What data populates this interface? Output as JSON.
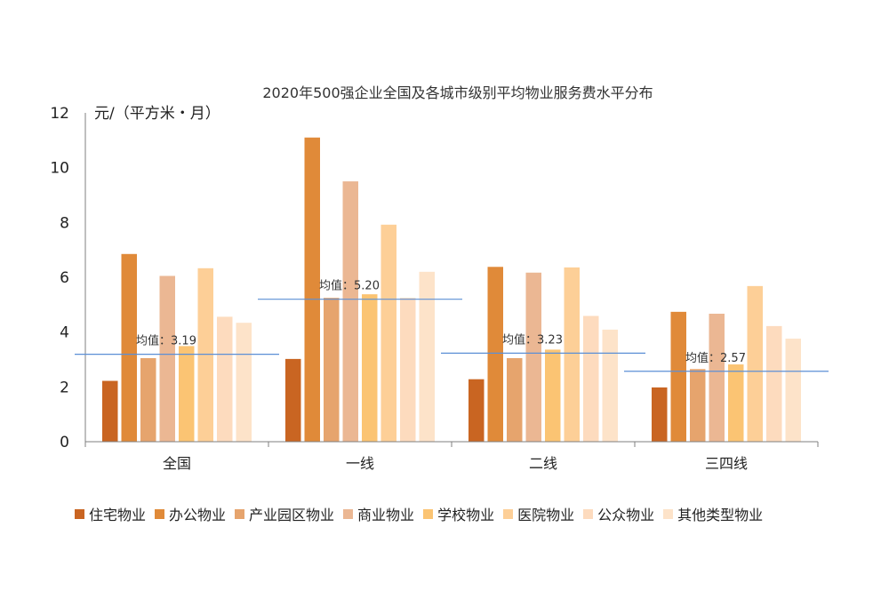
{
  "chart_data": {
    "type": "bar",
    "title": "2020年500强企业全国及各城市级别平均物业服务费水平分布",
    "ylabel": "元/（平方米・月）",
    "xlabel": "",
    "ylim": [
      0,
      12
    ],
    "yticks": [
      0,
      2,
      4,
      6,
      8,
      10,
      12
    ],
    "grid": false,
    "legend_position": "bottom",
    "categories": [
      "全国",
      "一线",
      "二线",
      "三四线"
    ],
    "series": [
      {
        "name": "住宅物业",
        "color": "#C96522",
        "values": [
          2.22,
          3.02,
          2.28,
          1.98
        ]
      },
      {
        "name": "办公物业",
        "color": "#E08A39",
        "values": [
          6.85,
          11.1,
          6.38,
          4.74
        ]
      },
      {
        "name": "产业园区物业",
        "color": "#E6A46D",
        "values": [
          3.05,
          5.25,
          3.05,
          2.65
        ]
      },
      {
        "name": "商业物业",
        "color": "#EBB793",
        "values": [
          6.05,
          9.5,
          6.17,
          4.67
        ]
      },
      {
        "name": "学校物业",
        "color": "#FBC473",
        "values": [
          3.49,
          5.38,
          3.36,
          2.82
        ]
      },
      {
        "name": "医院物业",
        "color": "#FDCF97",
        "values": [
          6.33,
          7.92,
          6.36,
          5.68
        ]
      },
      {
        "name": "公众物业",
        "color": "#FDDBBE",
        "values": [
          4.56,
          5.25,
          4.59,
          4.22
        ]
      },
      {
        "name": "其他类型物业",
        "color": "#FDE3C9",
        "values": [
          4.34,
          6.2,
          4.09,
          3.76
        ]
      }
    ],
    "mean_lines": [
      {
        "value": 3.19,
        "label": "均值：3.19"
      },
      {
        "value": 5.2,
        "label": "均值：5.20"
      },
      {
        "value": 3.23,
        "label": "均值：3.23"
      },
      {
        "value": 2.57,
        "label": "均值：2.57"
      }
    ],
    "mean_line_color": "#5B8FD6"
  }
}
